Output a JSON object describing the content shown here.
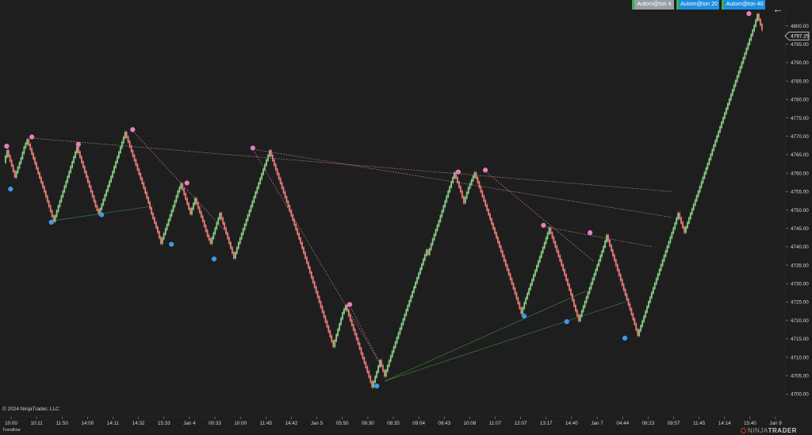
{
  "toolbar": {
    "buttons": [
      {
        "label": "Autom@ton  4"
      },
      {
        "label": "Autom@ton  20"
      },
      {
        "label": "Autom@ton  40"
      }
    ],
    "back_icon": "arrow-left-icon"
  },
  "footer": {
    "copyright": "© 2024 NinjaTrader, LLC",
    "drawing_tool": "Trendline",
    "logo_prefix": "NINJA",
    "logo_suffix": "TRADER"
  },
  "chart_data": {
    "type": "renko-candlestick",
    "symbol": "",
    "last_price": "4797.25",
    "ylim": [
      4697.5,
      4804
    ],
    "y_ticks": [
      "4800.00",
      "4795.00",
      "4790.00",
      "4785.00",
      "4780.00",
      "4775.00",
      "4770.00",
      "4765.00",
      "4760.00",
      "4755.00",
      "4750.00",
      "4745.00",
      "4740.00",
      "4735.00",
      "4730.00",
      "4725.00",
      "4720.00",
      "4715.00",
      "4710.00",
      "4705.00",
      "4700.00"
    ],
    "x_ticks": [
      "10:00",
      "10:11",
      "11:50",
      "14:00",
      "14:11",
      "14:32",
      "15:33",
      "Jan 4",
      "00:33",
      "10:00",
      "11:45",
      "14:42",
      "Jan 5",
      "05:50",
      "08:30",
      "08:35",
      "09:04",
      "09:43",
      "10:08",
      "11:07",
      "12:07",
      "13:17",
      "14:40",
      "Jan 7",
      "04:44",
      "08:23",
      "09:57",
      "11:45",
      "14:14",
      "15:40",
      "Jan 9"
    ],
    "colors": {
      "up": "#8ccf8a",
      "down": "#e9807a",
      "swing_high": "#e77fc0",
      "swing_low": "#3d9be9",
      "resistance_line": "#d08a9a",
      "support_line": "#3f8f3f"
    },
    "swing_points": [
      {
        "bar": 0.5,
        "price": 4767.0,
        "kind": "high"
      },
      {
        "bar": 1.5,
        "price": 4756.0,
        "kind": "low"
      },
      {
        "bar": 7,
        "price": 4769.5,
        "kind": "high"
      },
      {
        "bar": 12,
        "price": 4747.0,
        "kind": "low"
      },
      {
        "bar": 19,
        "price": 4767.5,
        "kind": "high"
      },
      {
        "bar": 25,
        "price": 4749.0,
        "kind": "low"
      },
      {
        "bar": 33,
        "price": 4771.5,
        "kind": "high"
      },
      {
        "bar": 43,
        "price": 4741.0,
        "kind": "low"
      },
      {
        "bar": 47,
        "price": 4757.0,
        "kind": "high"
      },
      {
        "bar": 54,
        "price": 4737.0,
        "kind": "low"
      },
      {
        "bar": 64,
        "price": 4766.5,
        "kind": "high"
      },
      {
        "bar": 89,
        "price": 4724.0,
        "kind": "high"
      },
      {
        "bar": 96,
        "price": 4702.5,
        "kind": "low"
      },
      {
        "bar": 117,
        "price": 4760.0,
        "kind": "high"
      },
      {
        "bar": 124,
        "price": 4760.5,
        "kind": "high"
      },
      {
        "bar": 139,
        "price": 4745.5,
        "kind": "high"
      },
      {
        "bar": 134,
        "price": 4721.5,
        "kind": "low"
      },
      {
        "bar": 145,
        "price": 4720.0,
        "kind": "low"
      },
      {
        "bar": 151,
        "price": 4743.5,
        "kind": "high"
      },
      {
        "bar": 160,
        "price": 4715.5,
        "kind": "low"
      },
      {
        "bar": 192,
        "price": 4803.0,
        "kind": "high"
      }
    ],
    "trend_lines": [
      {
        "from": [
          7,
          4769.5
        ],
        "to": [
          172,
          4755.0
        ],
        "kind": "resistance"
      },
      {
        "from": [
          33,
          4771.5
        ],
        "to": [
          58,
          4743.0
        ],
        "kind": "resistance"
      },
      {
        "from": [
          64,
          4766.5
        ],
        "to": [
          172,
          4748.0
        ],
        "kind": "resistance"
      },
      {
        "from": [
          64,
          4766.5
        ],
        "to": [
          97,
          4708.0
        ],
        "kind": "resistance"
      },
      {
        "from": [
          89,
          4724.0
        ],
        "to": [
          97,
          4708.0
        ],
        "kind": "resistance"
      },
      {
        "from": [
          124,
          4760.5
        ],
        "to": [
          152,
          4736.0
        ],
        "kind": "resistance"
      },
      {
        "from": [
          139,
          4745.5
        ],
        "to": [
          167,
          4740.0
        ],
        "kind": "resistance"
      },
      {
        "from": [
          12,
          4747.0
        ],
        "to": [
          38,
          4751.0
        ],
        "kind": "support"
      },
      {
        "from": [
          98,
          4703.5
        ],
        "to": [
          150,
          4728.0
        ],
        "kind": "support"
      },
      {
        "from": [
          98,
          4703.5
        ],
        "to": [
          160,
          4725.0
        ],
        "kind": "support"
      }
    ],
    "bars": [
      4763,
      4766,
      4762,
      4759,
      4764,
      4767,
      4769,
      4764,
      4760,
      4755,
      4751,
      4747,
      4751,
      4755,
      4759,
      4763,
      4767,
      4763,
      4759,
      4755,
      4751,
      4749,
      4754,
      4759,
      4763,
      4767,
      4771,
      4766,
      4761,
      4756,
      4752,
      4749,
      4744,
      4741,
      4746,
      4751,
      4755,
      4757,
      4753,
      4749,
      4753,
      4747,
      4743,
      4741,
      4745,
      4749,
      4745,
      4741,
      4737,
      4741,
      4746,
      4751,
      4756,
      4761,
      4766,
      4761,
      4756,
      4751,
      4746,
      4741,
      4737,
      4733,
      4729,
      4725,
      4721,
      4717,
      4713,
      4716,
      4719,
      4722,
      4724,
      4720,
      4715,
      4711,
      4706,
      4702,
      4706,
      4709,
      4705,
      4709,
      4714,
      4719,
      4724,
      4729,
      4734,
      4739,
      4738,
      4742,
      4747,
      4751,
      4755,
      4760,
      4755,
      4752,
      4756,
      4758,
      4760,
      4755,
      4750,
      4745,
      4740,
      4735,
      4730,
      4726,
      4722,
      4726,
      4731,
      4736,
      4741,
      4745,
      4740,
      4735,
      4731,
      4727,
      4724,
      4720,
      4725,
      4730,
      4735,
      4740,
      4743,
      4739,
      4735,
      4731,
      4727,
      4723,
      4719,
      4716,
      4721,
      4725,
      4730,
      4735,
      4740,
      4745,
      4749,
      4744,
      4749,
      4755,
      4760,
      4765,
      4770,
      4775,
      4780,
      4785,
      4790,
      4795,
      4800,
      4803,
      4799
    ]
  }
}
